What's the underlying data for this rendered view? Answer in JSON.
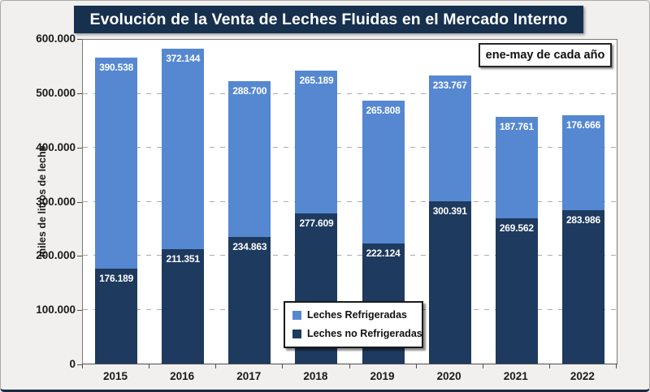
{
  "frame": {
    "title": "Evolución de la Venta de Leches Fluidas en el Mercado Interno",
    "annotation": "ene-may de cada año"
  },
  "colors": {
    "title_background": "#16304e",
    "refrigeradas_blue": "#5588d0",
    "no_refrigeradas_navy": "#1e3a5f",
    "plot_background": "#ffffff",
    "frame_background": "#f1f0ee",
    "gridline_gray": "#ababab"
  },
  "chart_data": {
    "type": "bar",
    "stacked": true,
    "title": "Evolución de la Venta de Leches Fluidas en el Mercado Interno",
    "subtitle_annotation": "ene-may de cada año",
    "xlabel": "",
    "ylabel": "miles de litros de leche",
    "ylim": [
      0,
      600000
    ],
    "ytick_step": 100000,
    "ytick_labels": [
      "600.000",
      "500.000",
      "400.000",
      "300.000",
      "200.000",
      "100.000",
      "0"
    ],
    "grid": "dashed-horizontal",
    "legend_position": "inside-bottom-center",
    "categories": [
      "2015",
      "2016",
      "2017",
      "2018",
      "2019",
      "2020",
      "2021",
      "2022"
    ],
    "series": [
      {
        "name": "Leches no Refrigeradas",
        "color": "#1e3a5f",
        "values": [
          176189,
          211351,
          234863,
          277609,
          222124,
          300391,
          269562,
          283986
        ],
        "labels": [
          "176.189",
          "211.351",
          "234.863",
          "277.609",
          "222.124",
          "300.391",
          "269.562",
          "283.986"
        ]
      },
      {
        "name": "Leches Refrigeradas",
        "color": "#5588d0",
        "values": [
          390538,
          372144,
          288700,
          265189,
          265808,
          233767,
          187761,
          176666
        ],
        "labels": [
          "390.538",
          "372.144",
          "288.700",
          "265.189",
          "265.808",
          "233.767",
          "187.761",
          "176.666"
        ]
      }
    ],
    "legend": [
      "Leches Refrigeradas",
      "Leches no Refrigeradas"
    ]
  }
}
